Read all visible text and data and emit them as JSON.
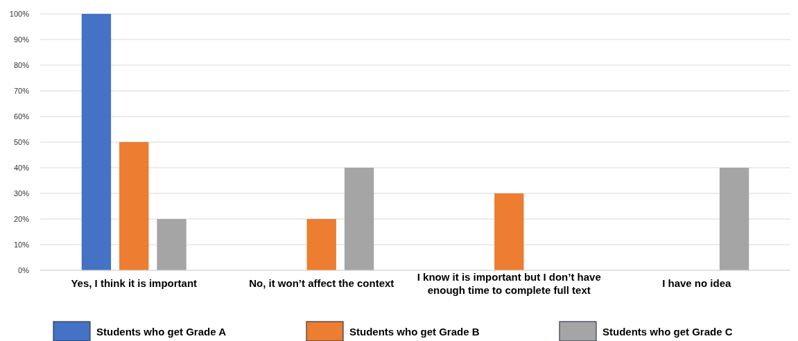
{
  "chart_data": {
    "type": "bar",
    "categories": [
      "Yes, I think it is important",
      "No, it won’t affect the context",
      "I know it is important but I don’t have enough time to complete full text",
      "I have no idea"
    ],
    "series": [
      {
        "name": "Students who get Grade A",
        "color": "#4472c4",
        "values": [
          100,
          0,
          0,
          0
        ]
      },
      {
        "name": "Students who get Grade B",
        "color": "#ed7d31",
        "values": [
          50,
          20,
          30,
          0
        ]
      },
      {
        "name": "Students who get Grade C",
        "color": "#a5a5a5",
        "values": [
          20,
          40,
          0,
          40
        ]
      }
    ],
    "ylim": [
      0,
      100
    ],
    "yticks": [
      {
        "value": 0,
        "label": "0%"
      },
      {
        "value": 10,
        "label": "10%"
      },
      {
        "value": 20,
        "label": "20%"
      },
      {
        "value": 30,
        "label": "30%"
      },
      {
        "value": 40,
        "label": "40%"
      },
      {
        "value": 50,
        "label": "50%"
      },
      {
        "value": 60,
        "label": "60%"
      },
      {
        "value": 70,
        "label": "70%"
      },
      {
        "value": 80,
        "label": "80%"
      },
      {
        "value": 90,
        "label": "90%"
      },
      {
        "value": 100,
        "label": "100%"
      }
    ],
    "grid": "y",
    "legend": "bottom"
  }
}
